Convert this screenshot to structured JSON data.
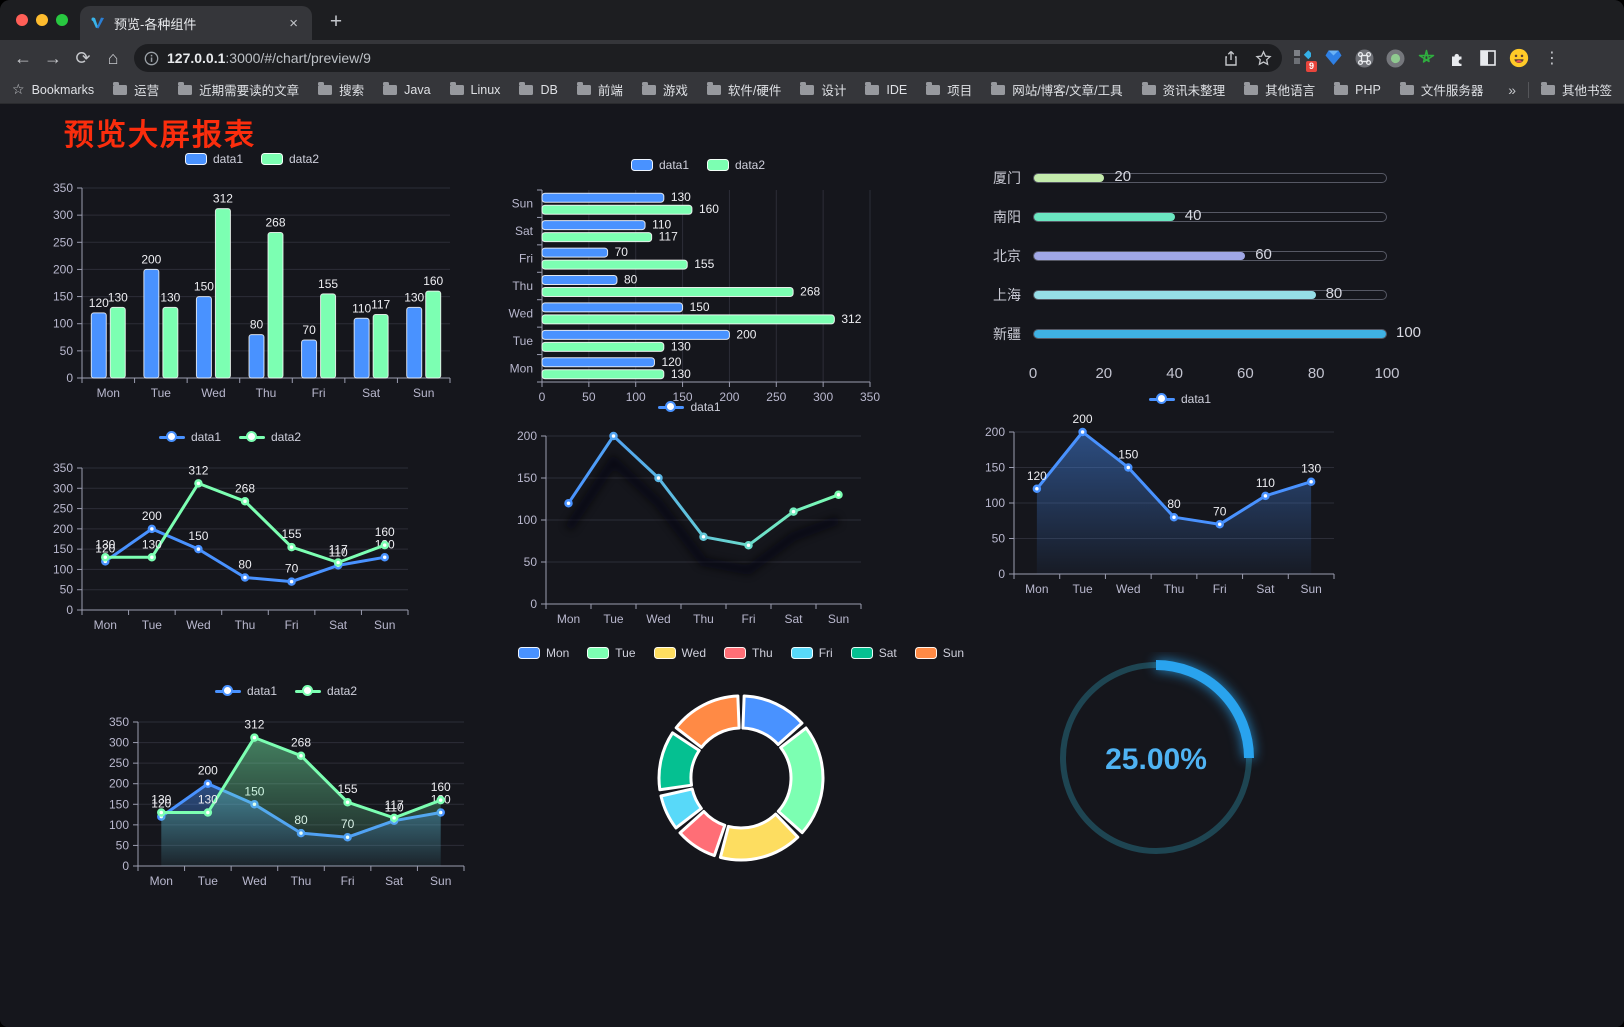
{
  "browser": {
    "tab_title": "预览-各种组件",
    "url_host": "127.0.0.1",
    "url_rest": ":3000/#/chart/preview/9",
    "bookmarks_bar_label": "Bookmarks",
    "bookmark_folders": [
      "运营",
      "近期需要读的文章",
      "搜索",
      "Java",
      "Linux",
      "DB",
      "前端",
      "游戏",
      "软件/硬件",
      "设计",
      "IDE",
      "项目",
      "网站/博客/文章/工具",
      "资讯未整理",
      "其他语言",
      "PHP",
      "文件服务器"
    ],
    "other_bookmarks_label": "其他书签",
    "extension_badge_count": "9",
    "icons": {
      "back": "←",
      "forward": "→",
      "reload": "⟳",
      "home": "⌂",
      "close_tab": "×",
      "new_tab": "+",
      "menu": "⋮",
      "overflow": "»",
      "star": "☆"
    }
  },
  "page": {
    "title": "预览大屏报表",
    "title_color": "#fb2d0d",
    "background": "#15161c"
  },
  "chart_data": [
    {
      "id": "bar-vertical",
      "type": "bar",
      "categories": [
        "Mon",
        "Tue",
        "Wed",
        "Thu",
        "Fri",
        "Sat",
        "Sun"
      ],
      "series": [
        {
          "name": "data1",
          "color": "#4992ff",
          "values": [
            120,
            200,
            150,
            80,
            70,
            110,
            130
          ]
        },
        {
          "name": "data2",
          "color": "#7cffb2",
          "values": [
            130,
            130,
            312,
            268,
            155,
            117,
            160
          ]
        }
      ],
      "ylim": [
        0,
        350
      ],
      "ytick_step": 50,
      "grid": true,
      "data_labels": true,
      "legend_position": "top"
    },
    {
      "id": "bar-horizontal",
      "type": "bar-horizontal",
      "categories": [
        "Mon",
        "Tue",
        "Wed",
        "Thu",
        "Fri",
        "Sat",
        "Sun"
      ],
      "series": [
        {
          "name": "data1",
          "color": "#4992ff",
          "values": [
            120,
            200,
            150,
            80,
            70,
            110,
            130
          ]
        },
        {
          "name": "data2",
          "color": "#7cffb2",
          "values": [
            130,
            130,
            312,
            268,
            155,
            117,
            160
          ]
        }
      ],
      "xlim": [
        0,
        350
      ],
      "xtick_step": 50,
      "grid": true,
      "data_labels": true,
      "legend_position": "top"
    },
    {
      "id": "progress-bars",
      "type": "progress",
      "max": 100,
      "items": [
        {
          "label": "厦门",
          "value": 20,
          "color": "#c4ebad"
        },
        {
          "label": "南阳",
          "value": 40,
          "color": "#6be6c1"
        },
        {
          "label": "北京",
          "value": 60,
          "color": "#a0a7e6"
        },
        {
          "label": "上海",
          "value": 80,
          "color": "#96dee8"
        },
        {
          "label": "新疆",
          "value": 100,
          "color": "#3fb1e3"
        }
      ],
      "axis_ticks": [
        0,
        20,
        40,
        60,
        80,
        100
      ]
    },
    {
      "id": "line-basic",
      "type": "line",
      "categories": [
        "Mon",
        "Tue",
        "Wed",
        "Thu",
        "Fri",
        "Sat",
        "Sun"
      ],
      "series": [
        {
          "name": "data1",
          "color": "#4992ff",
          "values": [
            120,
            200,
            150,
            80,
            70,
            110,
            130
          ]
        },
        {
          "name": "data2",
          "color": "#7cffb2",
          "values": [
            130,
            130,
            312,
            268,
            155,
            117,
            160
          ]
        }
      ],
      "ylim": [
        0,
        350
      ],
      "ytick_step": 50,
      "grid": true,
      "data_labels": true,
      "legend_position": "top"
    },
    {
      "id": "line-gradient",
      "type": "line",
      "categories": [
        "Mon",
        "Tue",
        "Wed",
        "Thu",
        "Fri",
        "Sat",
        "Sun"
      ],
      "series": [
        {
          "name": "data1",
          "color": "#4992ff",
          "color_gradient": [
            "#4992ff",
            "#7cffb2"
          ],
          "values": [
            120,
            200,
            150,
            80,
            70,
            110,
            130
          ]
        }
      ],
      "ylim": [
        0,
        200
      ],
      "ytick_step": 50,
      "grid": true,
      "data_labels": false,
      "shadow": true,
      "legend_position": "top"
    },
    {
      "id": "line-area",
      "type": "area",
      "categories": [
        "Mon",
        "Tue",
        "Wed",
        "Thu",
        "Fri",
        "Sat",
        "Sun"
      ],
      "series": [
        {
          "name": "data1",
          "color": "#4992ff",
          "values": [
            120,
            200,
            150,
            80,
            70,
            110,
            130
          ]
        }
      ],
      "ylim": [
        0,
        200
      ],
      "ytick_step": 50,
      "grid": true,
      "data_labels": true,
      "legend_position": "top"
    },
    {
      "id": "area-double",
      "type": "area",
      "categories": [
        "Mon",
        "Tue",
        "Wed",
        "Thu",
        "Fri",
        "Sat",
        "Sun"
      ],
      "series": [
        {
          "name": "data1",
          "color": "#4992ff",
          "values": [
            120,
            200,
            150,
            80,
            70,
            110,
            130
          ]
        },
        {
          "name": "data2",
          "color": "#7cffb2",
          "values": [
            130,
            130,
            312,
            268,
            155,
            117,
            160
          ]
        }
      ],
      "ylim": [
        0,
        350
      ],
      "ytick_step": 50,
      "grid": true,
      "data_labels": true,
      "legend_position": "top"
    },
    {
      "id": "donut",
      "type": "pie",
      "inner_radius_ratio": 0.61,
      "legend_position": "top",
      "items": [
        {
          "label": "Mon",
          "value": 120,
          "color": "#4992ff"
        },
        {
          "label": "Tue",
          "value": 200,
          "color": "#7cffb2"
        },
        {
          "label": "Wed",
          "value": 150,
          "color": "#fddd60"
        },
        {
          "label": "Thu",
          "value": 80,
          "color": "#ff6e76"
        },
        {
          "label": "Fri",
          "value": 70,
          "color": "#58d9f9"
        },
        {
          "label": "Sat",
          "value": 110,
          "color": "#05c091"
        },
        {
          "label": "Sun",
          "value": 130,
          "color": "#ff8a45"
        }
      ]
    },
    {
      "id": "gauge",
      "type": "gauge",
      "value_percent": 25,
      "label": "25.00%",
      "color": "#29a3ee",
      "track_color": "#1e4552",
      "text_color": "#4fb3f3"
    }
  ]
}
